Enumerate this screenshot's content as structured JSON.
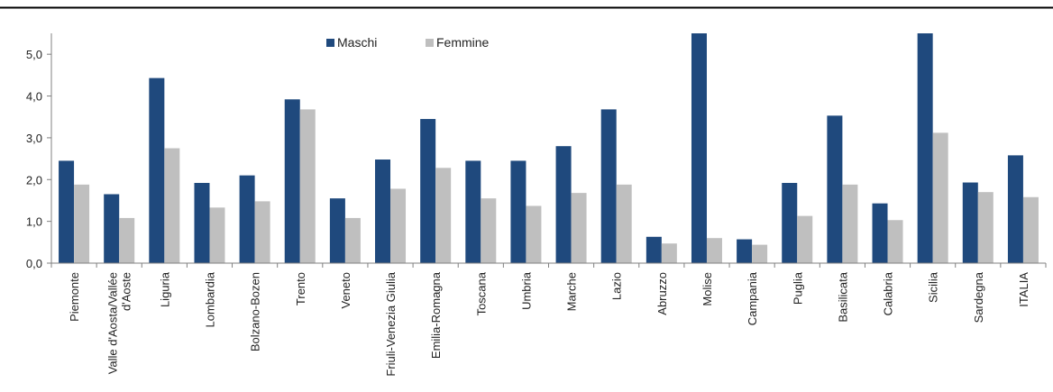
{
  "chart_data": {
    "type": "bar",
    "title": "",
    "xlabel": "",
    "ylabel": "",
    "ylim": [
      0,
      5.5
    ],
    "yticks": [
      "0,0",
      "1,0",
      "2,0",
      "3,0",
      "4,0",
      "5,0"
    ],
    "ytick_values": [
      0,
      1,
      2,
      3,
      4,
      5
    ],
    "grid": false,
    "legend_position": "top-center",
    "categories": [
      [
        "Piemonte"
      ],
      [
        "Valle d'Aosta/Vallée",
        "d'Aoste"
      ],
      [
        "Liguria"
      ],
      [
        "Lombardia"
      ],
      [
        "Bolzano-Bozen"
      ],
      [
        "Trento"
      ],
      [
        "Veneto"
      ],
      [
        "Friuli-Venezia Giulia"
      ],
      [
        "Emilia-Romagna"
      ],
      [
        "Toscana"
      ],
      [
        "Umbria"
      ],
      [
        "Marche"
      ],
      [
        "Lazio"
      ],
      [
        "Abruzzo"
      ],
      [
        "Molise"
      ],
      [
        "Campania"
      ],
      [
        "Puglia"
      ],
      [
        "Basilicata"
      ],
      [
        "Calabria"
      ],
      [
        "Sicilia"
      ],
      [
        "Sardegna"
      ],
      [
        "ITALIA"
      ]
    ],
    "series": [
      {
        "name": "Maschi",
        "color": "#1f497d",
        "values": [
          2.45,
          1.65,
          4.43,
          1.92,
          2.1,
          3.92,
          1.55,
          2.48,
          3.45,
          2.45,
          2.45,
          2.8,
          3.68,
          0.63,
          5.5,
          0.57,
          1.92,
          3.53,
          1.43,
          5.5,
          1.93,
          2.58
        ]
      },
      {
        "name": "Femmine",
        "color": "#bfbfbf",
        "values": [
          1.88,
          1.08,
          2.75,
          1.33,
          1.48,
          3.68,
          1.08,
          1.78,
          2.28,
          1.55,
          1.37,
          1.68,
          1.88,
          0.47,
          0.6,
          0.44,
          1.13,
          1.88,
          1.03,
          3.12,
          1.7,
          1.58
        ]
      }
    ]
  }
}
